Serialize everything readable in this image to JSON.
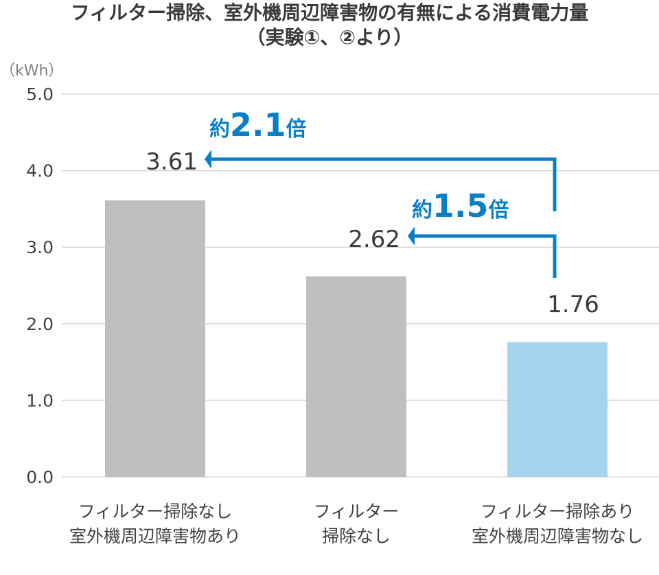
{
  "chart_data": {
    "type": "bar",
    "title": "フィルター掃除、室外機周辺障害物の有無による消費電力量",
    "subtitle": "（実験①、②より）",
    "ylabel": "（kWh）",
    "ylim": [
      0,
      5.0
    ],
    "yticks": [
      "0.0",
      "1.0",
      "2.0",
      "3.0",
      "4.0",
      "5.0"
    ],
    "grid": true,
    "categories": [
      [
        "フィルター掃除なし",
        "室外機周辺障害物あり"
      ],
      [
        "フィルター",
        "掃除なし"
      ],
      [
        "フィルター掃除あり",
        "室外機周辺障害物なし"
      ]
    ],
    "values": [
      3.61,
      2.62,
      1.76
    ],
    "data_labels": [
      "3.61",
      "2.62",
      "1.76"
    ],
    "bar_colors": [
      "#bfbfbf",
      "#bfbfbf",
      "#a6d3ef"
    ],
    "annotations": [
      {
        "prefix": "約",
        "value": "2.1",
        "suffix": "倍",
        "from": 2,
        "to": 0
      },
      {
        "prefix": "約",
        "value": "1.5",
        "suffix": "倍",
        "from": 2,
        "to": 1
      }
    ],
    "annotation_color": "#0a7fc6"
  }
}
